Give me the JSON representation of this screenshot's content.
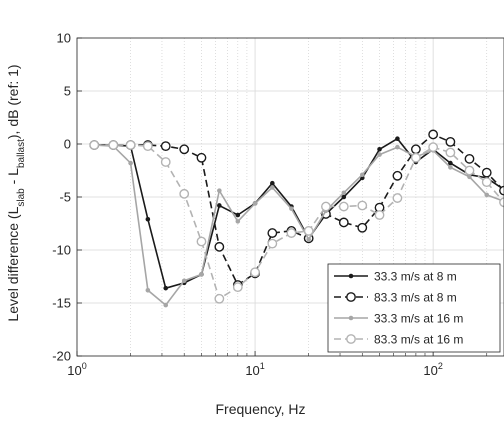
{
  "chart_data": {
    "type": "line",
    "xlabel": "Frequency, Hz",
    "ylabel_parts": [
      "Level difference (L",
      "slab",
      " - L",
      "ballast",
      "), dB (ref: 1)"
    ],
    "xscale": "log",
    "xlim": [
      1,
      250
    ],
    "ylim": [
      -20,
      10
    ],
    "grid": {
      "major": true,
      "minor_x": true
    },
    "yticks": [
      10,
      5,
      0,
      -5,
      -10,
      -15,
      -20
    ],
    "yticklabels": [
      "10",
      "5",
      "0",
      "-5",
      "-10",
      "-15",
      "-20"
    ],
    "xticks": [
      1,
      10,
      100
    ],
    "xticklabels": [
      {
        "base": "10",
        "exp": "0"
      },
      {
        "base": "10",
        "exp": "1"
      },
      {
        "base": "10",
        "exp": "2"
      }
    ],
    "legend_position": "bottom-right",
    "series": [
      {
        "name": "33.3 m/s at 8 m",
        "color": "#1a1a1a",
        "dash": "solid",
        "marker": "dot",
        "x": [
          1.25,
          1.6,
          2,
          2.5,
          3.15,
          4,
          5,
          6.3,
          8,
          10,
          12.5,
          16,
          20,
          25,
          31.5,
          40,
          50,
          63,
          80,
          100,
          125,
          160,
          200,
          250
        ],
        "y": [
          -0.1,
          -0.1,
          -0.2,
          -7.1,
          -13.6,
          -13.1,
          -12.3,
          -5.8,
          -6.7,
          -5.6,
          -3.7,
          -5.9,
          -8.9,
          -6.6,
          -5.0,
          -3.2,
          -0.5,
          0.5,
          -1.7,
          -0.5,
          -1.8,
          -2.9,
          -3.2,
          -4.3
        ]
      },
      {
        "name": "83.3 m/s at 8 m",
        "color": "#1a1a1a",
        "dash": "dashed",
        "marker": "circle",
        "x": [
          1.25,
          1.6,
          2,
          2.5,
          3.15,
          4,
          5,
          6.3,
          8,
          10,
          12.5,
          16,
          20,
          25,
          31.5,
          40,
          50,
          63,
          80,
          100,
          125,
          160,
          200,
          250
        ],
        "y": [
          -0.1,
          -0.1,
          -0.1,
          -0.1,
          -0.2,
          -0.5,
          -1.3,
          -9.7,
          -13.3,
          -12.2,
          -8.4,
          -8.2,
          -8.9,
          -6.6,
          -7.4,
          -7.9,
          -6.0,
          -3.0,
          -0.5,
          0.9,
          0.2,
          -1.4,
          -2.7,
          -4.4
        ]
      },
      {
        "name": "33.3 m/s at 16 m",
        "color": "#a6a6a6",
        "dash": "solid",
        "marker": "dot",
        "x": [
          1.25,
          1.6,
          2,
          2.5,
          3.15,
          4,
          5,
          6.3,
          8,
          10,
          12.5,
          16,
          20,
          25,
          31.5,
          40,
          50,
          63,
          80,
          100,
          125,
          160,
          200,
          250
        ],
        "y": [
          -0.1,
          -0.2,
          -1.8,
          -13.8,
          -15.2,
          -12.9,
          -12.3,
          -4.4,
          -7.3,
          -5.6,
          -4.1,
          -6.1,
          -9.0,
          -6.3,
          -4.6,
          -2.9,
          -1.0,
          -0.3,
          -1.2,
          -0.6,
          -2.2,
          -3.1,
          -4.8,
          -5.4
        ]
      },
      {
        "name": "83.3 m/s at 16 m",
        "color": "#b3b3b3",
        "dash": "dashed",
        "marker": "circle",
        "x": [
          1.25,
          1.6,
          2,
          2.5,
          3.15,
          4,
          5,
          6.3,
          8,
          10,
          12.5,
          16,
          20,
          25,
          31.5,
          40,
          50,
          63,
          80,
          100,
          125,
          160,
          200,
          250
        ],
        "y": [
          -0.1,
          -0.1,
          -0.1,
          -0.2,
          -1.7,
          -4.7,
          -9.2,
          -14.6,
          -13.5,
          -12.1,
          -9.4,
          -8.4,
          -8.2,
          -5.9,
          -5.9,
          -5.8,
          -6.7,
          -5.1,
          -1.3,
          -0.3,
          -0.8,
          -2.5,
          -3.6,
          -5.5
        ]
      }
    ]
  }
}
